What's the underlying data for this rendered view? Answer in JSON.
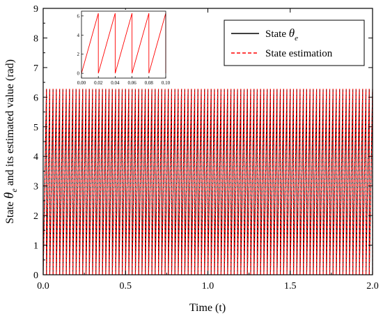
{
  "chart_data": {
    "type": "line",
    "xlabel": "Time (t)",
    "ylabel": {
      "prefix": "State ",
      "symbol": "θ",
      "subscript": "e",
      "suffix": " and its estimated value  (rad)"
    },
    "xlim": [
      0.0,
      2.0
    ],
    "ylim": [
      0,
      9
    ],
    "x_ticks": [
      "0.0",
      "0.5",
      "1.0",
      "1.5",
      "2.0"
    ],
    "y_ticks": [
      "0",
      "1",
      "2",
      "3",
      "4",
      "5",
      "6",
      "7",
      "8",
      "9"
    ],
    "grid": false,
    "legend_position": "top-right",
    "waveform": {
      "shape": "sawtooth",
      "min": 0,
      "max": 6.28,
      "period": 0.02
    },
    "series": [
      {
        "name_prefix": "State ",
        "name_symbol": "θ",
        "name_subscript": "e",
        "color": "#000000",
        "style": "solid"
      },
      {
        "name": "State estimation",
        "color": "#ff0000",
        "style": "dashed"
      }
    ],
    "inset": {
      "type": "line",
      "xlim": [
        0.0,
        0.1
      ],
      "ylim": [
        -0.5,
        6.5
      ],
      "x_ticks": [
        "0.00",
        "0.02",
        "0.04",
        "0.06",
        "0.08",
        "0.10"
      ],
      "y_ticks": [
        "0",
        "2",
        "4",
        "6"
      ],
      "line_color": "#ff0000"
    }
  }
}
